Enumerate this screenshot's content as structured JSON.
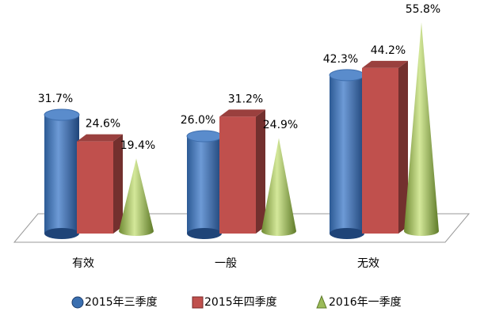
{
  "chart_data": {
    "type": "bar3d",
    "categories": [
      "有效",
      "一般",
      "无效"
    ],
    "series": [
      {
        "name": "2015年三季度",
        "color": "#4a7ebb",
        "values": [
          31.7,
          26.0,
          42.3
        ],
        "value_labels": [
          "31.7%",
          "26.0%",
          "42.3%"
        ]
      },
      {
        "name": "2015年四季度",
        "color": "#c0504d",
        "values": [
          24.6,
          31.2,
          44.2
        ],
        "value_labels": [
          "24.6%",
          "31.2%",
          "44.2%"
        ]
      },
      {
        "name": "2016年一季度",
        "color": "#9bbb59",
        "values": [
          19.4,
          24.9,
          55.8
        ],
        "value_labels": [
          "19.4%",
          "24.9%",
          "55.8%"
        ]
      }
    ]
  }
}
